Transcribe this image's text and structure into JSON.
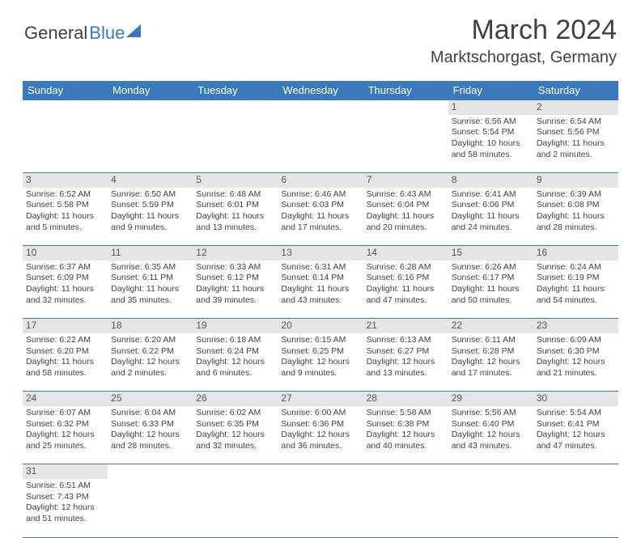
{
  "logo": {
    "general": "General",
    "blue": "Blue"
  },
  "title": "March 2024",
  "location": "Marktschorgast, Germany",
  "colors": {
    "header_bg": "#3a7ab8",
    "header_text": "#ffffff",
    "daynum_bg": "#e5e5e5",
    "border": "#3a7ab8",
    "text": "#414141"
  },
  "day_headers": [
    "Sunday",
    "Monday",
    "Tuesday",
    "Wednesday",
    "Thursday",
    "Friday",
    "Saturday"
  ],
  "weeks": [
    [
      null,
      null,
      null,
      null,
      null,
      {
        "day": "1",
        "sunrise": "Sunrise: 6:56 AM",
        "sunset": "Sunset: 5:54 PM",
        "daylight1": "Daylight: 10 hours",
        "daylight2": "and 58 minutes."
      },
      {
        "day": "2",
        "sunrise": "Sunrise: 6:54 AM",
        "sunset": "Sunset: 5:56 PM",
        "daylight1": "Daylight: 11 hours",
        "daylight2": "and 2 minutes."
      }
    ],
    [
      {
        "day": "3",
        "sunrise": "Sunrise: 6:52 AM",
        "sunset": "Sunset: 5:58 PM",
        "daylight1": "Daylight: 11 hours",
        "daylight2": "and 5 minutes."
      },
      {
        "day": "4",
        "sunrise": "Sunrise: 6:50 AM",
        "sunset": "Sunset: 5:59 PM",
        "daylight1": "Daylight: 11 hours",
        "daylight2": "and 9 minutes."
      },
      {
        "day": "5",
        "sunrise": "Sunrise: 6:48 AM",
        "sunset": "Sunset: 6:01 PM",
        "daylight1": "Daylight: 11 hours",
        "daylight2": "and 13 minutes."
      },
      {
        "day": "6",
        "sunrise": "Sunrise: 6:46 AM",
        "sunset": "Sunset: 6:03 PM",
        "daylight1": "Daylight: 11 hours",
        "daylight2": "and 17 minutes."
      },
      {
        "day": "7",
        "sunrise": "Sunrise: 6:43 AM",
        "sunset": "Sunset: 6:04 PM",
        "daylight1": "Daylight: 11 hours",
        "daylight2": "and 20 minutes."
      },
      {
        "day": "8",
        "sunrise": "Sunrise: 6:41 AM",
        "sunset": "Sunset: 6:06 PM",
        "daylight1": "Daylight: 11 hours",
        "daylight2": "and 24 minutes."
      },
      {
        "day": "9",
        "sunrise": "Sunrise: 6:39 AM",
        "sunset": "Sunset: 6:08 PM",
        "daylight1": "Daylight: 11 hours",
        "daylight2": "and 28 minutes."
      }
    ],
    [
      {
        "day": "10",
        "sunrise": "Sunrise: 6:37 AM",
        "sunset": "Sunset: 6:09 PM",
        "daylight1": "Daylight: 11 hours",
        "daylight2": "and 32 minutes."
      },
      {
        "day": "11",
        "sunrise": "Sunrise: 6:35 AM",
        "sunset": "Sunset: 6:11 PM",
        "daylight1": "Daylight: 11 hours",
        "daylight2": "and 35 minutes."
      },
      {
        "day": "12",
        "sunrise": "Sunrise: 6:33 AM",
        "sunset": "Sunset: 6:12 PM",
        "daylight1": "Daylight: 11 hours",
        "daylight2": "and 39 minutes."
      },
      {
        "day": "13",
        "sunrise": "Sunrise: 6:31 AM",
        "sunset": "Sunset: 6:14 PM",
        "daylight1": "Daylight: 11 hours",
        "daylight2": "and 43 minutes."
      },
      {
        "day": "14",
        "sunrise": "Sunrise: 6:28 AM",
        "sunset": "Sunset: 6:16 PM",
        "daylight1": "Daylight: 11 hours",
        "daylight2": "and 47 minutes."
      },
      {
        "day": "15",
        "sunrise": "Sunrise: 6:26 AM",
        "sunset": "Sunset: 6:17 PM",
        "daylight1": "Daylight: 11 hours",
        "daylight2": "and 50 minutes."
      },
      {
        "day": "16",
        "sunrise": "Sunrise: 6:24 AM",
        "sunset": "Sunset: 6:19 PM",
        "daylight1": "Daylight: 11 hours",
        "daylight2": "and 54 minutes."
      }
    ],
    [
      {
        "day": "17",
        "sunrise": "Sunrise: 6:22 AM",
        "sunset": "Sunset: 6:20 PM",
        "daylight1": "Daylight: 11 hours",
        "daylight2": "and 58 minutes."
      },
      {
        "day": "18",
        "sunrise": "Sunrise: 6:20 AM",
        "sunset": "Sunset: 6:22 PM",
        "daylight1": "Daylight: 12 hours",
        "daylight2": "and 2 minutes."
      },
      {
        "day": "19",
        "sunrise": "Sunrise: 6:18 AM",
        "sunset": "Sunset: 6:24 PM",
        "daylight1": "Daylight: 12 hours",
        "daylight2": "and 6 minutes."
      },
      {
        "day": "20",
        "sunrise": "Sunrise: 6:15 AM",
        "sunset": "Sunset: 6:25 PM",
        "daylight1": "Daylight: 12 hours",
        "daylight2": "and 9 minutes."
      },
      {
        "day": "21",
        "sunrise": "Sunrise: 6:13 AM",
        "sunset": "Sunset: 6:27 PM",
        "daylight1": "Daylight: 12 hours",
        "daylight2": "and 13 minutes."
      },
      {
        "day": "22",
        "sunrise": "Sunrise: 6:11 AM",
        "sunset": "Sunset: 6:28 PM",
        "daylight1": "Daylight: 12 hours",
        "daylight2": "and 17 minutes."
      },
      {
        "day": "23",
        "sunrise": "Sunrise: 6:09 AM",
        "sunset": "Sunset: 6:30 PM",
        "daylight1": "Daylight: 12 hours",
        "daylight2": "and 21 minutes."
      }
    ],
    [
      {
        "day": "24",
        "sunrise": "Sunrise: 6:07 AM",
        "sunset": "Sunset: 6:32 PM",
        "daylight1": "Daylight: 12 hours",
        "daylight2": "and 25 minutes."
      },
      {
        "day": "25",
        "sunrise": "Sunrise: 6:04 AM",
        "sunset": "Sunset: 6:33 PM",
        "daylight1": "Daylight: 12 hours",
        "daylight2": "and 28 minutes."
      },
      {
        "day": "26",
        "sunrise": "Sunrise: 6:02 AM",
        "sunset": "Sunset: 6:35 PM",
        "daylight1": "Daylight: 12 hours",
        "daylight2": "and 32 minutes."
      },
      {
        "day": "27",
        "sunrise": "Sunrise: 6:00 AM",
        "sunset": "Sunset: 6:36 PM",
        "daylight1": "Daylight: 12 hours",
        "daylight2": "and 36 minutes."
      },
      {
        "day": "28",
        "sunrise": "Sunrise: 5:58 AM",
        "sunset": "Sunset: 6:38 PM",
        "daylight1": "Daylight: 12 hours",
        "daylight2": "and 40 minutes."
      },
      {
        "day": "29",
        "sunrise": "Sunrise: 5:56 AM",
        "sunset": "Sunset: 6:40 PM",
        "daylight1": "Daylight: 12 hours",
        "daylight2": "and 43 minutes."
      },
      {
        "day": "30",
        "sunrise": "Sunrise: 5:54 AM",
        "sunset": "Sunset: 6:41 PM",
        "daylight1": "Daylight: 12 hours",
        "daylight2": "and 47 minutes."
      }
    ],
    [
      {
        "day": "31",
        "sunrise": "Sunrise: 6:51 AM",
        "sunset": "Sunset: 7:43 PM",
        "daylight1": "Daylight: 12 hours",
        "daylight2": "and 51 minutes."
      },
      null,
      null,
      null,
      null,
      null,
      null
    ]
  ]
}
